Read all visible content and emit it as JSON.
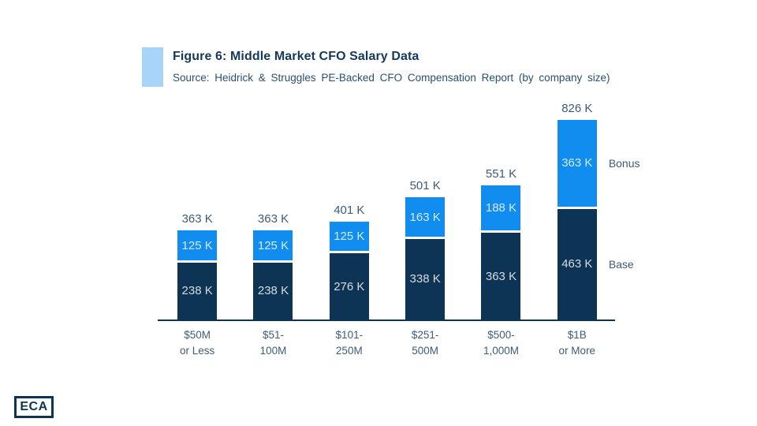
{
  "header": {
    "title": "Figure 6: Middle Market CFO Salary Data",
    "source": "Source: Heidrick & Struggles PE-Backed CFO Compensation Report (by company size)"
  },
  "logo": {
    "text": "ECA"
  },
  "colors": {
    "bonus_blue": "#118DF0",
    "base_navy": "#0D3355",
    "accent_light_blue": "#A7D4F8",
    "title_text": "#14395C",
    "label_text": "#3D5C77",
    "value_label_text": "rgba(255,255,255,0.82)"
  },
  "chart_data": {
    "type": "bar",
    "stacked": true,
    "title": "Figure 6: Middle Market CFO Salary Data",
    "unit": "K (thousand USD)",
    "categories": [
      "$50M\nor Less",
      "$51-\n100M",
      "$101-\n250M",
      "$251-\n500M",
      "$500-\n1,000M",
      "$1B\nor More"
    ],
    "series": [
      {
        "name": "Base",
        "color": "#0D3355",
        "values": [
          238,
          238,
          276,
          338,
          363,
          463
        ],
        "labels": [
          "238 K",
          "238 K",
          "276 K",
          "338 K",
          "363 K",
          "463 K"
        ]
      },
      {
        "name": "Bonus",
        "color": "#118DF0",
        "values": [
          125,
          125,
          125,
          163,
          188,
          363
        ],
        "labels": [
          "125 K",
          "125 K",
          "125 K",
          "163 K",
          "188 K",
          "363 K"
        ]
      }
    ],
    "totals": [
      363,
      363,
      401,
      501,
      551,
      826
    ],
    "total_labels": [
      "363 K",
      "363 K",
      "401 K",
      "501 K",
      "551 K",
      "826 K"
    ],
    "legend": {
      "position": "right-of-last-bar",
      "entries": [
        "Bonus",
        "Base"
      ]
    },
    "ylim": [
      0,
      826
    ],
    "grid": false,
    "xaxis_line": true
  }
}
